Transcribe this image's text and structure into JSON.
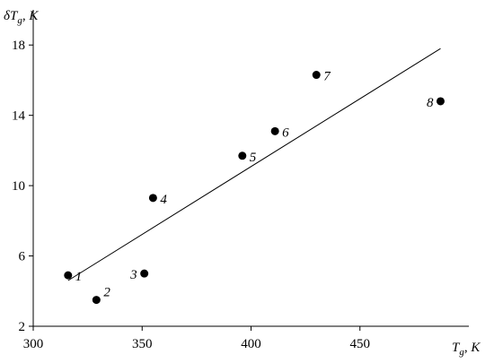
{
  "chart_data": {
    "type": "scatter",
    "x_label": [
      "T",
      "g",
      ", K"
    ],
    "y_label": [
      "δT",
      "g",
      ", K"
    ],
    "x": [
      316,
      329,
      351,
      355,
      396,
      411,
      430,
      487
    ],
    "y": [
      4.9,
      3.5,
      5.0,
      9.3,
      11.7,
      13.1,
      16.3,
      14.8
    ],
    "point_labels": [
      "1",
      "2",
      "3",
      "4",
      "5",
      "6",
      "7",
      "8"
    ],
    "color": "#000000",
    "trend_line": {
      "x": [
        316,
        487
      ],
      "y": [
        4.6,
        17.8
      ]
    },
    "xlim": [
      300,
      500
    ],
    "ylim": [
      2,
      20
    ],
    "xticks": [
      300,
      350,
      400,
      450
    ],
    "yticks": [
      2,
      6,
      10,
      14,
      18
    ],
    "grid": false
  }
}
